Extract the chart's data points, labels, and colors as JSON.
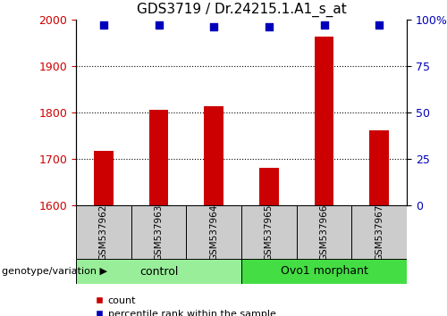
{
  "title": "GDS3719 / Dr.24215.1.A1_s_at",
  "samples": [
    "GSM537962",
    "GSM537963",
    "GSM537964",
    "GSM537965",
    "GSM537966",
    "GSM537967"
  ],
  "counts": [
    1718,
    1805,
    1813,
    1680,
    1963,
    1762
  ],
  "percentiles": [
    97,
    97,
    96,
    96,
    97,
    97
  ],
  "ylim_left": [
    1600,
    2000
  ],
  "ylim_right": [
    0,
    100
  ],
  "yticks_left": [
    1600,
    1700,
    1800,
    1900,
    2000
  ],
  "yticks_right": [
    0,
    25,
    50,
    75,
    100
  ],
  "ytick_labels_right": [
    "0",
    "25",
    "50",
    "75",
    "100%"
  ],
  "grid_yticks": [
    1700,
    1800,
    1900
  ],
  "bar_color": "#CC0000",
  "dot_color": "#0000BB",
  "dot_size": 28,
  "bar_width": 0.35,
  "legend_count_label": "count",
  "legend_percentile_label": "percentile rank within the sample",
  "group_info": [
    {
      "start": 0,
      "end": 2,
      "label": "control",
      "color": "#99EE99"
    },
    {
      "start": 3,
      "end": 5,
      "label": "Ovo1 morphant",
      "color": "#44DD44"
    }
  ],
  "sample_box_color": "#CCCCCC",
  "title_fontsize": 11,
  "tick_fontsize": 9,
  "label_fontsize": 7.5,
  "group_fontsize": 9,
  "legend_fontsize": 8,
  "genotype_label": "genotype/variation ▶"
}
